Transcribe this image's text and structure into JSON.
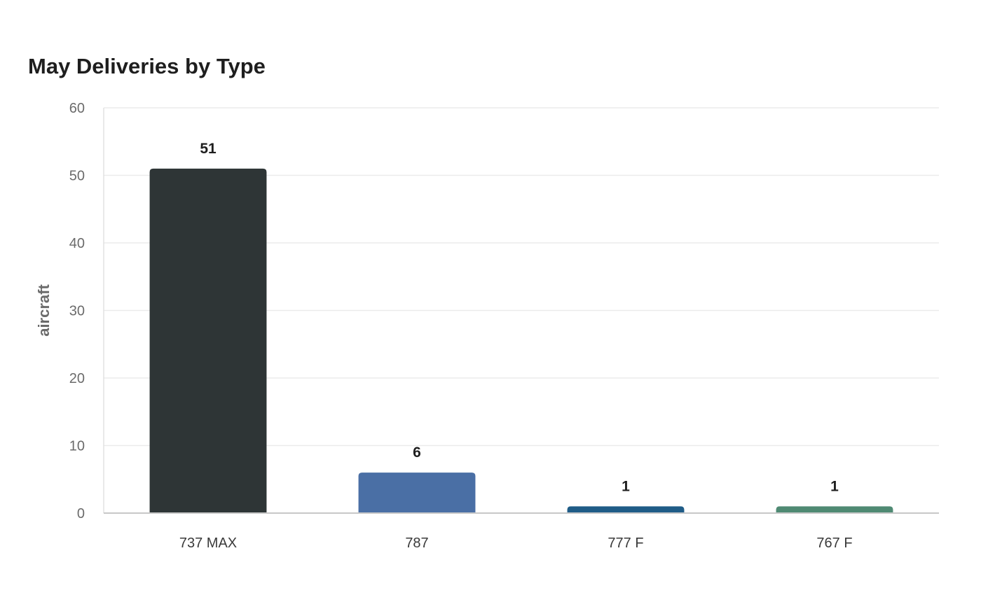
{
  "chart_data": {
    "type": "bar",
    "title": "May Deliveries by Type",
    "xlabel": "",
    "ylabel": "aircraft",
    "categories": [
      "737 MAX",
      "787",
      "777 F",
      "767 F"
    ],
    "values": [
      51,
      6,
      1,
      1
    ],
    "data_labels": [
      "51",
      "6",
      "1",
      "1"
    ],
    "colors": [
      "#2e3536",
      "#4a6fa5",
      "#1f5c87",
      "#4f8a73"
    ],
    "ylim": [
      0,
      60
    ],
    "yticks": [
      0,
      10,
      20,
      30,
      40,
      50,
      60
    ],
    "grid": true,
    "legend": "none"
  }
}
